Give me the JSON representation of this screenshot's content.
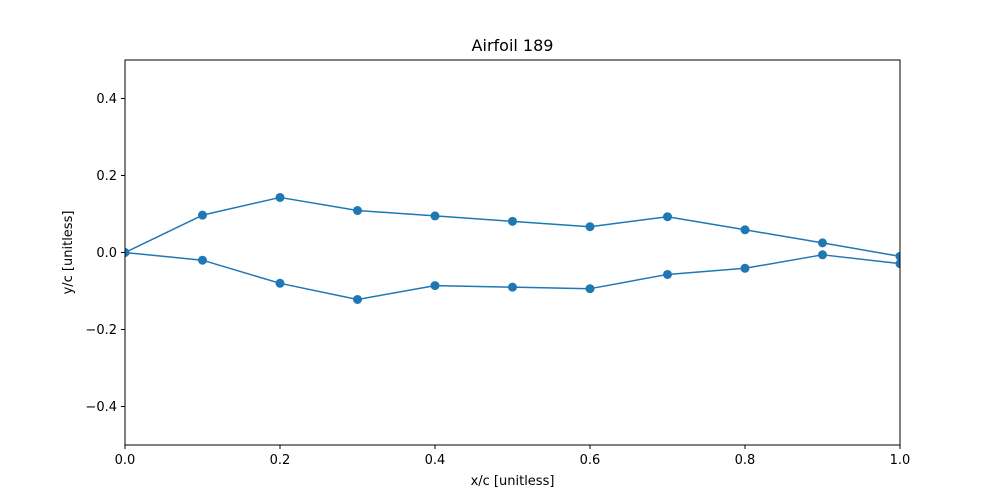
{
  "chart_data": {
    "type": "line",
    "title": "Airfoil 189",
    "xlabel": "x/c [unitless]",
    "ylabel": "y/c [unitless]",
    "xlim": [
      0.0,
      1.0
    ],
    "ylim": [
      -0.5,
      0.5
    ],
    "xticks": [
      0.0,
      0.2,
      0.4,
      0.6,
      0.8,
      1.0
    ],
    "xtick_labels": [
      "0.0",
      "0.2",
      "0.4",
      "0.6",
      "0.8",
      "1.0"
    ],
    "yticks": [
      -0.4,
      -0.2,
      0.0,
      0.2,
      0.4
    ],
    "ytick_labels": [
      "−0.4",
      "−0.2",
      "0.0",
      "0.2",
      "0.4"
    ],
    "grid": false,
    "legend": "none",
    "color": "#1f77b4",
    "series": [
      {
        "x": [
          1.0,
          0.9,
          0.8,
          0.7,
          0.6,
          0.5,
          0.4,
          0.3,
          0.2,
          0.1,
          0.0,
          0.1,
          0.2,
          0.3,
          0.4,
          0.5,
          0.6,
          0.7,
          0.8,
          0.9,
          1.0
        ],
        "y": [
          -0.01,
          0.025,
          0.059,
          0.093,
          0.067,
          0.081,
          0.095,
          0.109,
          0.143,
          0.097,
          0.0,
          -0.02,
          -0.08,
          -0.122,
          -0.086,
          -0.09,
          -0.094,
          -0.057,
          -0.041,
          -0.006,
          -0.029
        ]
      }
    ]
  }
}
